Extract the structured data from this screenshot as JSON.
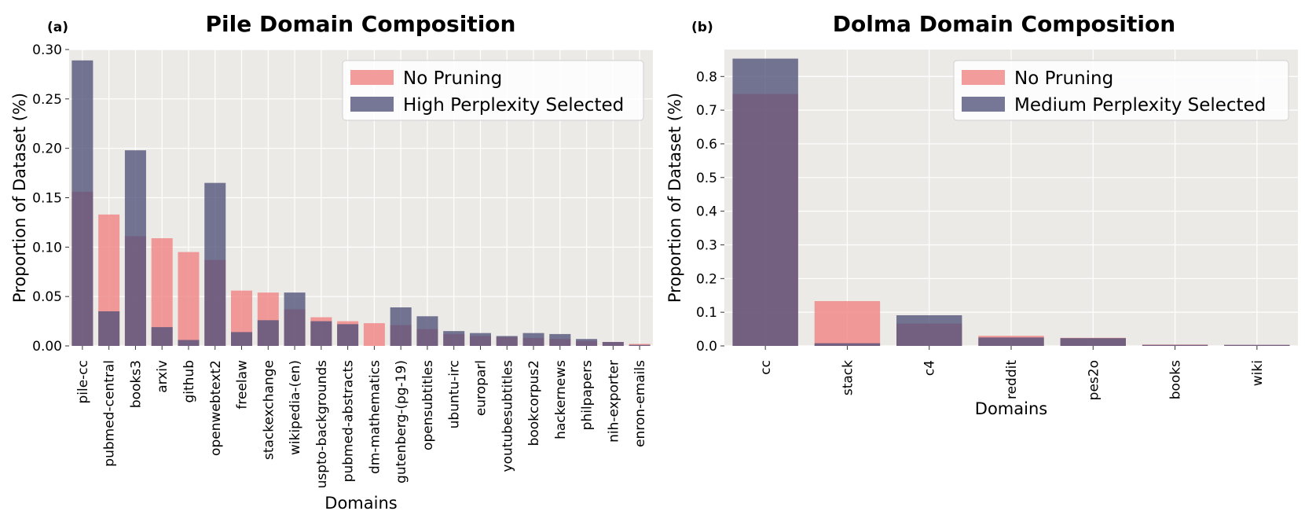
{
  "chart_data": [
    {
      "type": "bar",
      "panel_label": "(a)",
      "title": "Pile Domain Composition",
      "xlabel": "Domains",
      "ylabel": "Proportion of Dataset (%)",
      "ylim": [
        0,
        0.3
      ],
      "yticks": [
        "0.00",
        "0.05",
        "0.10",
        "0.15",
        "0.20",
        "0.25",
        "0.30"
      ],
      "grid": true,
      "legend_position": "top-right",
      "categories": [
        "pile-cc",
        "pubmed-central",
        "books3",
        "arxiv",
        "github",
        "openwebtext2",
        "freelaw",
        "stackexchange",
        "wikipedia-(en)",
        "uspto-backgrounds",
        "pubmed-abstracts",
        "dm-mathematics",
        "gutenberg-(pg-19)",
        "opensubtitles",
        "ubuntu-irc",
        "europarl",
        "youtubesubtitles",
        "bookcorpus2",
        "hackernews",
        "philpapers",
        "nih-exporter",
        "enron-emails"
      ],
      "series": [
        {
          "name": "No Pruning",
          "color": "#f08080",
          "values": [
            0.156,
            0.133,
            0.111,
            0.109,
            0.095,
            0.087,
            0.056,
            0.054,
            0.037,
            0.029,
            0.025,
            0.023,
            0.021,
            0.017,
            0.012,
            0.01,
            0.009,
            0.008,
            0.007,
            0.005,
            0.004,
            0.002
          ]
        },
        {
          "name": "High Perplexity Selected",
          "color": "#505078",
          "values": [
            0.289,
            0.035,
            0.198,
            0.019,
            0.006,
            0.165,
            0.014,
            0.026,
            0.054,
            0.025,
            0.022,
            0.0,
            0.039,
            0.03,
            0.015,
            0.013,
            0.01,
            0.013,
            0.012,
            0.007,
            0.004,
            0.001
          ]
        }
      ]
    },
    {
      "type": "bar",
      "panel_label": "(b)",
      "title": "Dolma Domain Composition",
      "xlabel": "Domains",
      "ylabel": "Proportion of Dataset (%)",
      "ylim": [
        0,
        0.88
      ],
      "yticks": [
        "0.0",
        "0.1",
        "0.2",
        "0.3",
        "0.4",
        "0.5",
        "0.6",
        "0.7",
        "0.8"
      ],
      "grid": true,
      "legend_position": "top-right",
      "categories": [
        "cc",
        "stack",
        "c4",
        "reddit",
        "pes2o",
        "books",
        "wiki"
      ],
      "series": [
        {
          "name": "No Pruning",
          "color": "#f08080",
          "values": [
            0.748,
            0.133,
            0.066,
            0.03,
            0.024,
            0.004,
            0.003
          ]
        },
        {
          "name": "Medium Perplexity Selected",
          "color": "#505078",
          "values": [
            0.853,
            0.008,
            0.091,
            0.025,
            0.023,
            0.003,
            0.003
          ]
        }
      ]
    }
  ]
}
